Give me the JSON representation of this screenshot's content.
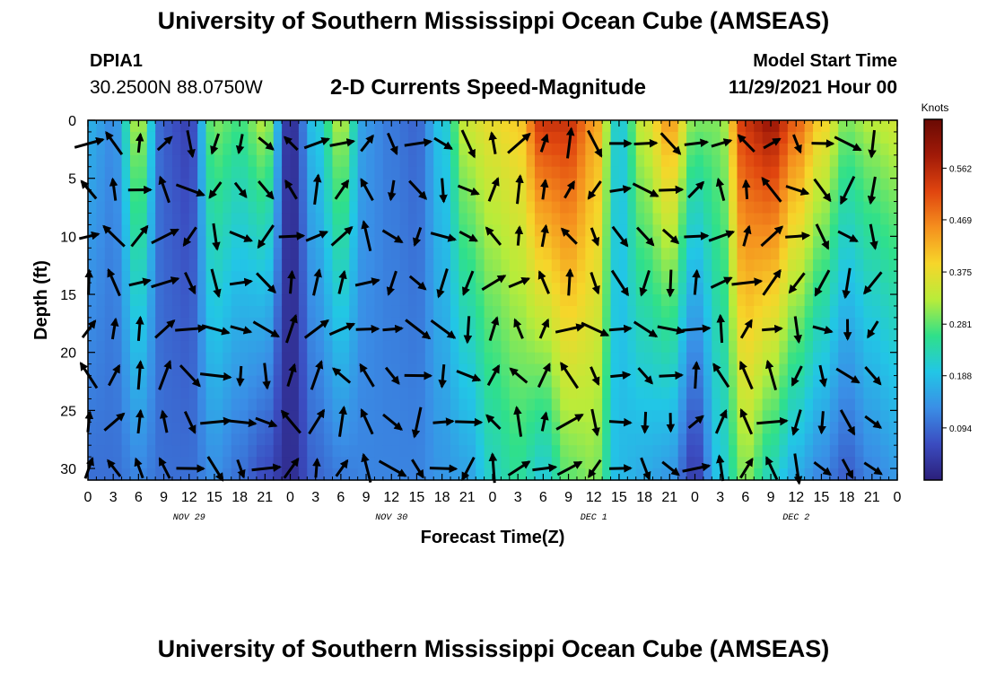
{
  "title": "University of Southern Mississippi Ocean Cube (AMSEAS)",
  "station": {
    "id": "DPIA1",
    "coords": "30.2500N  88.0750W"
  },
  "subtitle": "2-D Currents Speed-Magnitude",
  "model_start": {
    "label": "Model Start Time",
    "value": "11/29/2021 Hour 00"
  },
  "colors": {
    "ramp": [
      "#2b1f7a",
      "#3b4cc0",
      "#3a8ee6",
      "#22c6e6",
      "#2fe08a",
      "#b8ec3a",
      "#f6d62a",
      "#f5901e",
      "#e0450f",
      "#a11a08",
      "#6a0a04"
    ],
    "arrow": "#000000"
  },
  "chart_data": {
    "type": "heatmap",
    "title": "2-D Currents Speed-Magnitude",
    "xlabel": "Forecast Time(Z)",
    "ylabel": "Depth (ft)",
    "xlim": [
      0,
      96
    ],
    "ylim": [
      0,
      31
    ],
    "x_ticks": [
      0,
      3,
      6,
      9,
      12,
      15,
      18,
      21,
      24,
      27,
      30,
      33,
      36,
      39,
      42,
      45,
      48,
      51,
      54,
      57,
      60,
      63,
      66,
      69,
      72,
      75,
      78,
      81,
      84,
      87,
      90,
      93,
      96
    ],
    "x_tick_labels": [
      "0",
      "3",
      "6",
      "9",
      "12",
      "15",
      "18",
      "21",
      "0",
      "3",
      "6",
      "9",
      "12",
      "15",
      "18",
      "21",
      "0",
      "3",
      "6",
      "9",
      "12",
      "15",
      "18",
      "21",
      "0",
      "3",
      "6",
      "9",
      "12",
      "15",
      "18",
      "21",
      "0"
    ],
    "y_ticks": [
      0,
      5,
      10,
      15,
      20,
      25,
      30
    ],
    "y_tick_labels": [
      "0",
      "5",
      "10",
      "15",
      "20",
      "25",
      "30"
    ],
    "day_labels": [
      {
        "x": 12,
        "text": "NOV 29"
      },
      {
        "x": 36,
        "text": "NOV 30"
      },
      {
        "x": 60,
        "text": "DEC 1"
      },
      {
        "x": 84,
        "text": "DEC 2"
      }
    ],
    "colorbar": {
      "title": "Knots",
      "min": 0,
      "max": 0.65,
      "ticks": [
        0.094,
        0.188,
        0.281,
        0.375,
        0.469,
        0.562
      ],
      "tick_labels": [
        "0.094",
        "0.188",
        "0.281",
        "0.375",
        "0.469",
        "0.562"
      ]
    },
    "depth_levels": [
      0,
      4,
      8,
      12,
      16,
      20,
      24,
      28
    ],
    "speed_profile_by_time": {
      "times": [
        0,
        3,
        6,
        9,
        12,
        15,
        18,
        21,
        24,
        27,
        30,
        33,
        36,
        39,
        42,
        45,
        48,
        51,
        54,
        57,
        60,
        63,
        66,
        69,
        72,
        75,
        78,
        81,
        84,
        87,
        90,
        93,
        96
      ],
      "surface_knots": [
        0.17,
        0.13,
        0.33,
        0.08,
        0.05,
        0.3,
        0.27,
        0.33,
        0.02,
        0.2,
        0.33,
        0.14,
        0.11,
        0.09,
        0.2,
        0.35,
        0.38,
        0.4,
        0.55,
        0.55,
        0.45,
        0.2,
        0.35,
        0.45,
        0.3,
        0.3,
        0.55,
        0.6,
        0.5,
        0.4,
        0.3,
        0.33,
        0.35
      ],
      "bottom_knots": [
        0.1,
        0.1,
        0.12,
        0.1,
        0.1,
        0.13,
        0.1,
        0.06,
        0.02,
        0.09,
        0.11,
        0.12,
        0.12,
        0.12,
        0.14,
        0.15,
        0.22,
        0.25,
        0.2,
        0.28,
        0.3,
        0.18,
        0.16,
        0.14,
        0.04,
        0.2,
        0.3,
        0.22,
        0.16,
        0.12,
        0.08,
        0.12,
        0.14
      ]
    },
    "vectors_note": "Current direction arrows (black) at 3-hour intervals and 4-ft depth spacing"
  }
}
